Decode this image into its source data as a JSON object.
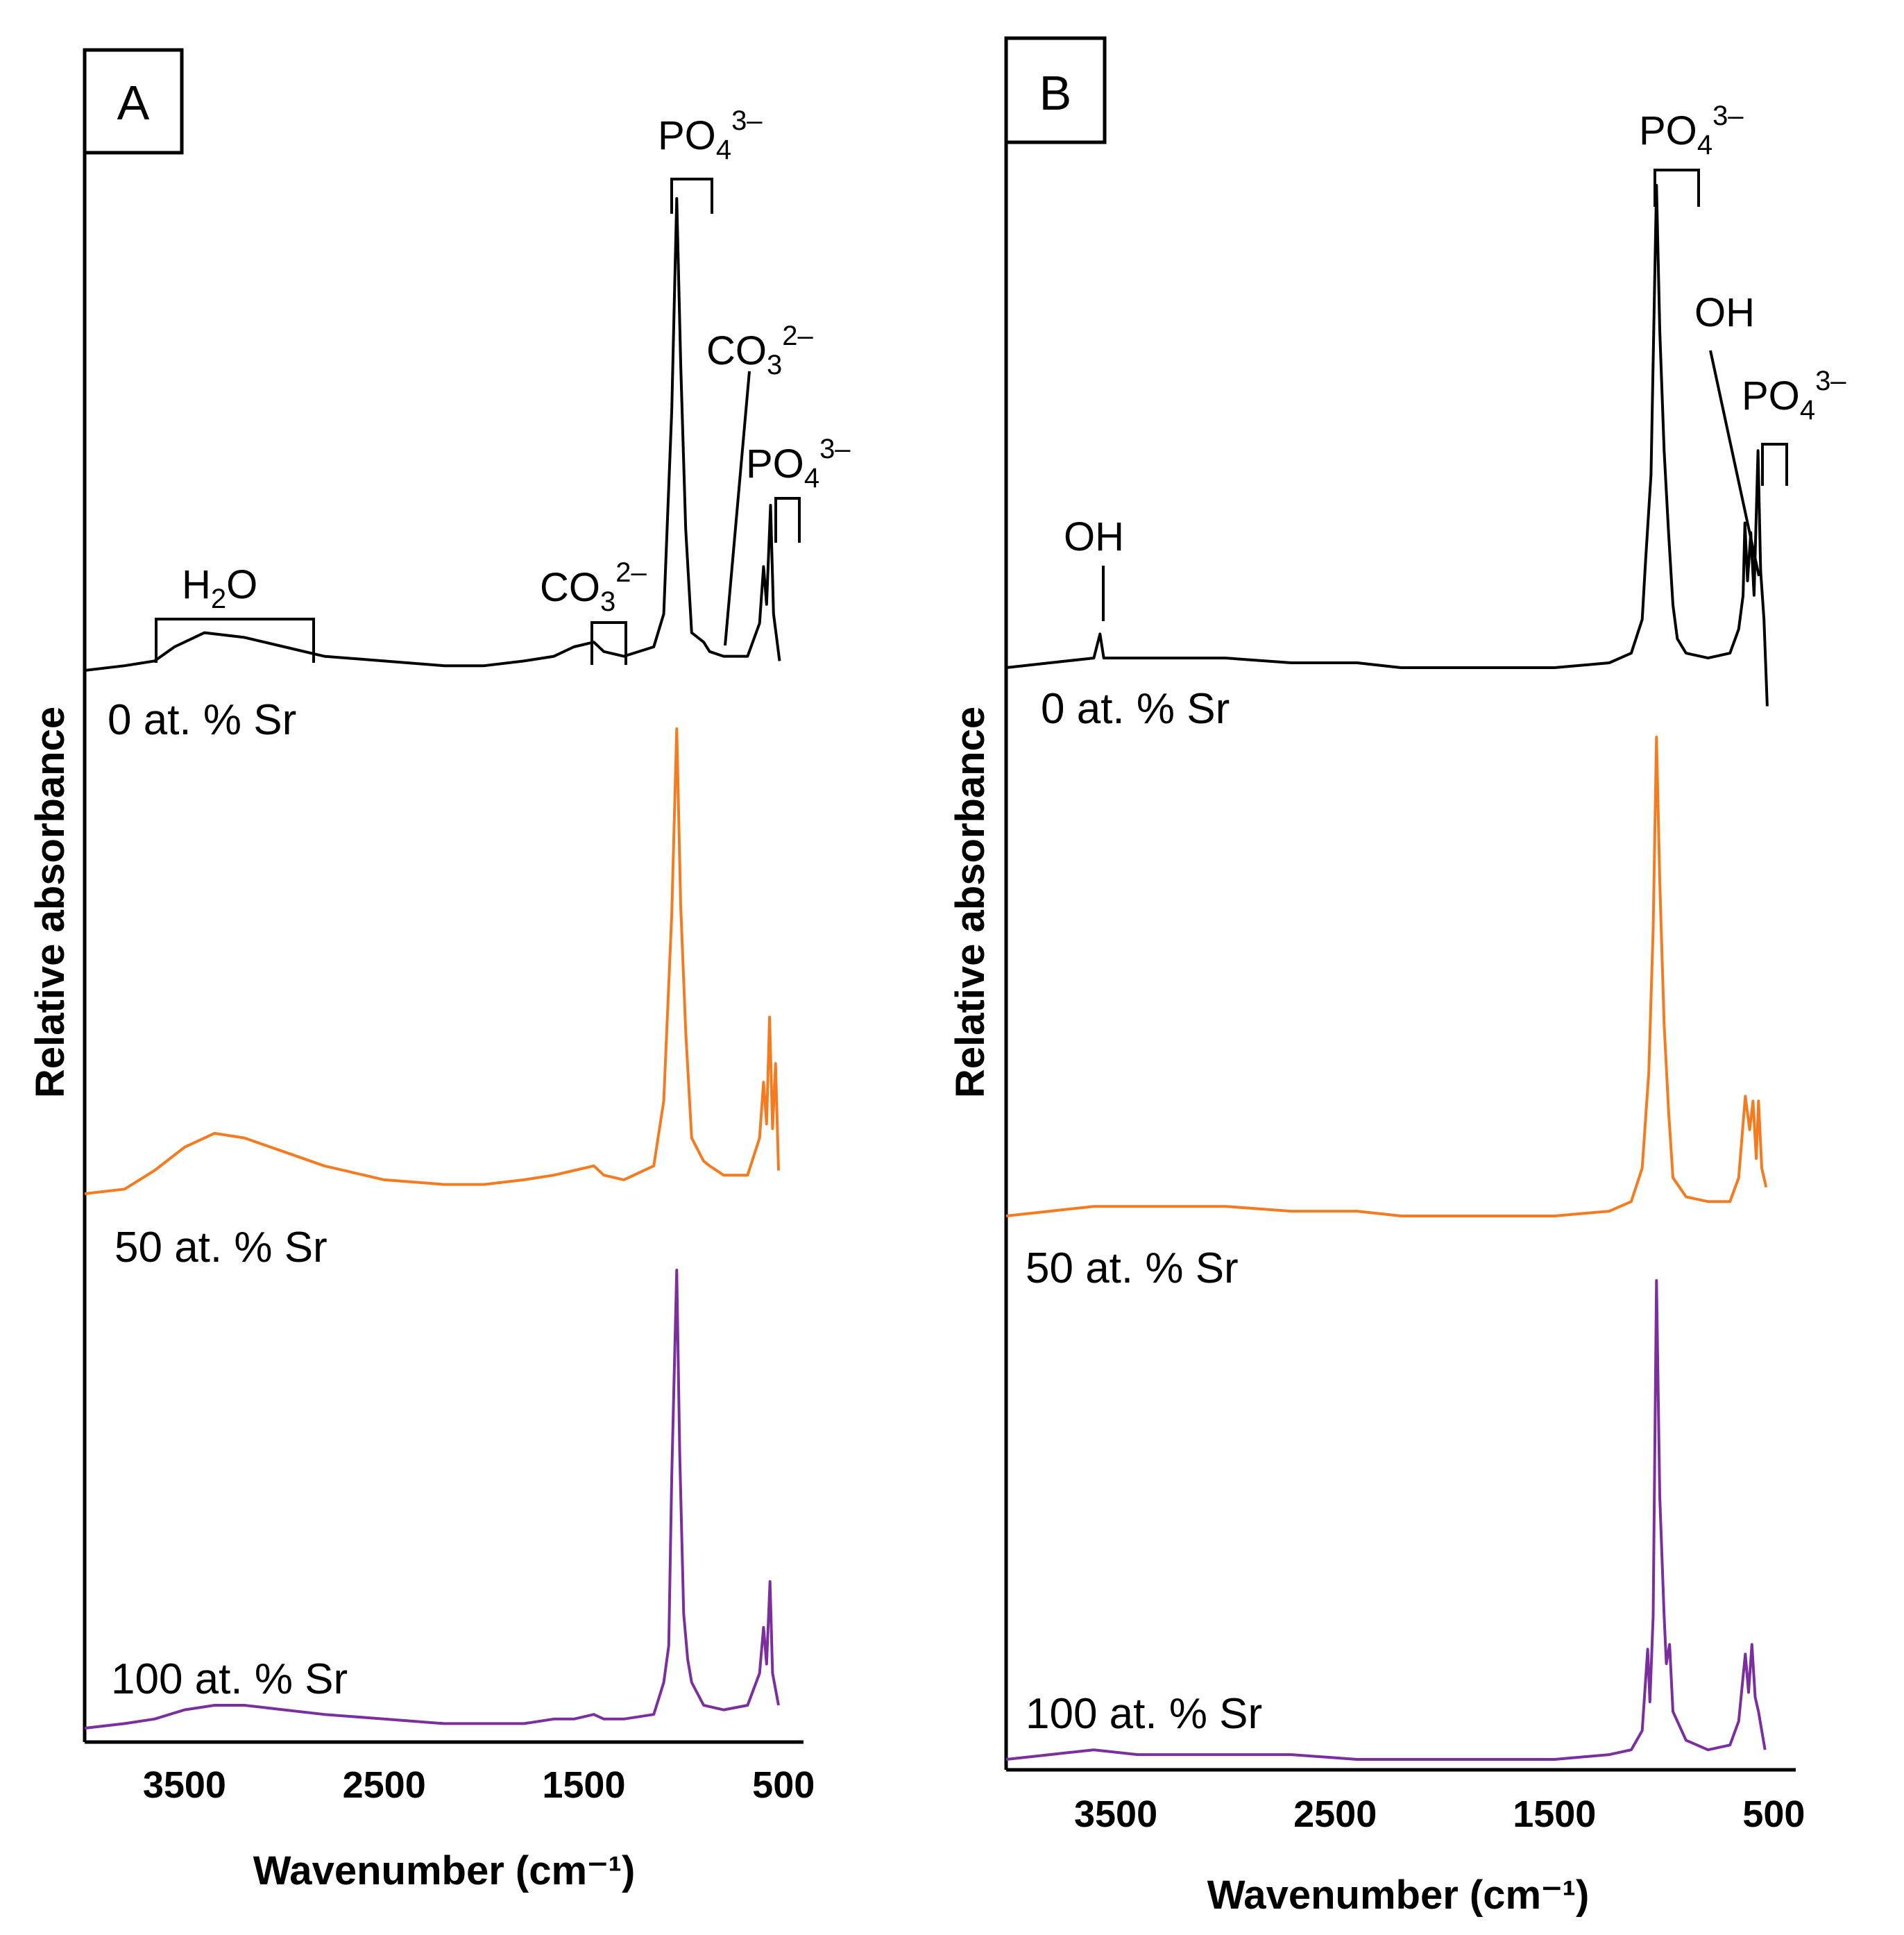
{
  "chart_data": [
    {
      "panel": "A",
      "type": "line",
      "xlabel": "Wavenumber (cm⁻¹)",
      "ylabel": "Relative absorbance",
      "xlim": [
        4000,
        400
      ],
      "xticks": [
        "3500",
        "2500",
        "1500",
        "500"
      ],
      "xtick_values": [
        3500,
        2500,
        1500,
        500
      ],
      "series": [
        {
          "name": "0 at. % Sr",
          "color": "#000000",
          "points": [
            [
              4000,
              0.0
            ],
            [
              3800,
              0.01
            ],
            [
              3650,
              0.02
            ],
            [
              3550,
              0.05
            ],
            [
              3400,
              0.08
            ],
            [
              3200,
              0.07
            ],
            [
              3000,
              0.05
            ],
            [
              2800,
              0.03
            ],
            [
              2500,
              0.02
            ],
            [
              2200,
              0.01
            ],
            [
              2000,
              0.01
            ],
            [
              1800,
              0.02
            ],
            [
              1650,
              0.03
            ],
            [
              1550,
              0.05
            ],
            [
              1450,
              0.06
            ],
            [
              1400,
              0.04
            ],
            [
              1300,
              0.03
            ],
            [
              1150,
              0.05
            ],
            [
              1100,
              0.12
            ],
            [
              1060,
              0.55
            ],
            [
              1035,
              1.0
            ],
            [
              1015,
              0.65
            ],
            [
              990,
              0.3
            ],
            [
              960,
              0.08
            ],
            [
              900,
              0.06
            ],
            [
              870,
              0.04
            ],
            [
              800,
              0.03
            ],
            [
              680,
              0.03
            ],
            [
              620,
              0.1
            ],
            [
              600,
              0.22
            ],
            [
              585,
              0.14
            ],
            [
              565,
              0.35
            ],
            [
              550,
              0.12
            ],
            [
              520,
              0.02
            ]
          ]
        },
        {
          "name": "50 at. % Sr",
          "color": "#F47B20",
          "points": [
            [
              4000,
              0.0
            ],
            [
              3800,
              0.01
            ],
            [
              3650,
              0.05
            ],
            [
              3500,
              0.1
            ],
            [
              3350,
              0.13
            ],
            [
              3200,
              0.12
            ],
            [
              3000,
              0.09
            ],
            [
              2800,
              0.06
            ],
            [
              2500,
              0.03
            ],
            [
              2200,
              0.02
            ],
            [
              2000,
              0.02
            ],
            [
              1800,
              0.03
            ],
            [
              1650,
              0.04
            ],
            [
              1550,
              0.05
            ],
            [
              1450,
              0.06
            ],
            [
              1400,
              0.04
            ],
            [
              1300,
              0.03
            ],
            [
              1150,
              0.06
            ],
            [
              1100,
              0.2
            ],
            [
              1060,
              0.6
            ],
            [
              1035,
              1.0
            ],
            [
              1015,
              0.62
            ],
            [
              990,
              0.35
            ],
            [
              960,
              0.12
            ],
            [
              900,
              0.07
            ],
            [
              870,
              0.06
            ],
            [
              800,
              0.04
            ],
            [
              680,
              0.04
            ],
            [
              620,
              0.12
            ],
            [
              600,
              0.24
            ],
            [
              585,
              0.15
            ],
            [
              570,
              0.38
            ],
            [
              555,
              0.14
            ],
            [
              540,
              0.28
            ],
            [
              525,
              0.05
            ]
          ]
        },
        {
          "name": "100 at. % Sr",
          "color": "#7B2F9E",
          "points": [
            [
              4000,
              0.0
            ],
            [
              3800,
              0.01
            ],
            [
              3650,
              0.02
            ],
            [
              3500,
              0.04
            ],
            [
              3350,
              0.05
            ],
            [
              3200,
              0.05
            ],
            [
              3000,
              0.04
            ],
            [
              2800,
              0.03
            ],
            [
              2500,
              0.02
            ],
            [
              2200,
              0.01
            ],
            [
              2000,
              0.01
            ],
            [
              1800,
              0.01
            ],
            [
              1650,
              0.02
            ],
            [
              1550,
              0.02
            ],
            [
              1450,
              0.03
            ],
            [
              1400,
              0.02
            ],
            [
              1300,
              0.02
            ],
            [
              1150,
              0.03
            ],
            [
              1100,
              0.1
            ],
            [
              1075,
              0.18
            ],
            [
              1060,
              0.55
            ],
            [
              1035,
              1.0
            ],
            [
              1020,
              0.6
            ],
            [
              1000,
              0.25
            ],
            [
              980,
              0.15
            ],
            [
              960,
              0.1
            ],
            [
              900,
              0.05
            ],
            [
              800,
              0.04
            ],
            [
              680,
              0.05
            ],
            [
              620,
              0.12
            ],
            [
              600,
              0.22
            ],
            [
              585,
              0.14
            ],
            [
              568,
              0.32
            ],
            [
              555,
              0.12
            ],
            [
              525,
              0.05
            ]
          ]
        }
      ],
      "annotations": [
        {
          "label": "H",
          "sub": "2",
          "rest": "O",
          "sup": ""
        },
        {
          "label": "CO",
          "sub": "3",
          "rest": "",
          "sup": "2–"
        },
        {
          "label": "PO",
          "sub": "4",
          "rest": "",
          "sup": "3–"
        },
        {
          "label": "CO",
          "sub": "3",
          "rest": "",
          "sup": "2–"
        },
        {
          "label": "PO",
          "sub": "4",
          "rest": "",
          "sup": "3–"
        }
      ]
    },
    {
      "panel": "B",
      "type": "line",
      "xlabel": "Wavenumber (cm⁻¹)",
      "ylabel": "Relative absorbance",
      "xlim": [
        4000,
        400
      ],
      "xticks": [
        "3500",
        "2500",
        "1500",
        "500"
      ],
      "xtick_values": [
        3500,
        2500,
        1500,
        500
      ],
      "series": [
        {
          "name": "0 at. % Sr",
          "color": "#000000",
          "points": [
            [
              4000,
              0.0
            ],
            [
              3800,
              0.01
            ],
            [
              3600,
              0.02
            ],
            [
              3572,
              0.07
            ],
            [
              3555,
              0.02
            ],
            [
              3300,
              0.02
            ],
            [
              3000,
              0.02
            ],
            [
              2700,
              0.01
            ],
            [
              2400,
              0.01
            ],
            [
              2200,
              0.0
            ],
            [
              2000,
              0.0
            ],
            [
              1800,
              0.0
            ],
            [
              1500,
              0.0
            ],
            [
              1250,
              0.01
            ],
            [
              1150,
              0.03
            ],
            [
              1100,
              0.1
            ],
            [
              1085,
              0.22
            ],
            [
              1060,
              0.4
            ],
            [
              1035,
              1.0
            ],
            [
              1020,
              0.7
            ],
            [
              1000,
              0.45
            ],
            [
              980,
              0.28
            ],
            [
              960,
              0.13
            ],
            [
              940,
              0.06
            ],
            [
              900,
              0.03
            ],
            [
              800,
              0.02
            ],
            [
              700,
              0.03
            ],
            [
              660,
              0.08
            ],
            [
              640,
              0.15
            ],
            [
              632,
              0.3
            ],
            [
              620,
              0.18
            ],
            [
              605,
              0.28
            ],
            [
              590,
              0.15
            ],
            [
              572,
              0.45
            ],
            [
              560,
              0.2
            ],
            [
              545,
              0.1
            ],
            [
              530,
              -0.08
            ]
          ]
        },
        {
          "name": "50 at. % Sr",
          "color": "#F47B20",
          "points": [
            [
              4000,
              0.0
            ],
            [
              3800,
              0.01
            ],
            [
              3600,
              0.02
            ],
            [
              3300,
              0.02
            ],
            [
              3000,
              0.02
            ],
            [
              2700,
              0.01
            ],
            [
              2400,
              0.01
            ],
            [
              2200,
              0.0
            ],
            [
              2000,
              0.0
            ],
            [
              1800,
              0.0
            ],
            [
              1500,
              0.0
            ],
            [
              1250,
              0.01
            ],
            [
              1150,
              0.03
            ],
            [
              1100,
              0.1
            ],
            [
              1070,
              0.3
            ],
            [
              1050,
              0.6
            ],
            [
              1035,
              1.0
            ],
            [
              1020,
              0.7
            ],
            [
              1000,
              0.4
            ],
            [
              980,
              0.22
            ],
            [
              960,
              0.08
            ],
            [
              900,
              0.04
            ],
            [
              800,
              0.03
            ],
            [
              700,
              0.03
            ],
            [
              660,
              0.08
            ],
            [
              630,
              0.25
            ],
            [
              610,
              0.18
            ],
            [
              595,
              0.24
            ],
            [
              580,
              0.12
            ],
            [
              570,
              0.24
            ],
            [
              555,
              0.1
            ],
            [
              535,
              0.06
            ]
          ]
        },
        {
          "name": "100 at. % Sr",
          "color": "#7B2F9E",
          "points": [
            [
              4000,
              0.0
            ],
            [
              3800,
              0.01
            ],
            [
              3600,
              0.02
            ],
            [
              3400,
              0.01
            ],
            [
              3000,
              0.01
            ],
            [
              2700,
              0.01
            ],
            [
              2400,
              0.0
            ],
            [
              2200,
              0.0
            ],
            [
              2000,
              0.0
            ],
            [
              1800,
              0.0
            ],
            [
              1500,
              0.0
            ],
            [
              1250,
              0.01
            ],
            [
              1150,
              0.02
            ],
            [
              1100,
              0.06
            ],
            [
              1075,
              0.23
            ],
            [
              1065,
              0.12
            ],
            [
              1050,
              0.3
            ],
            [
              1035,
              1.0
            ],
            [
              1020,
              0.55
            ],
            [
              1000,
              0.3
            ],
            [
              990,
              0.2
            ],
            [
              975,
              0.24
            ],
            [
              960,
              0.1
            ],
            [
              900,
              0.04
            ],
            [
              800,
              0.02
            ],
            [
              700,
              0.03
            ],
            [
              660,
              0.08
            ],
            [
              630,
              0.22
            ],
            [
              615,
              0.14
            ],
            [
              600,
              0.24
            ],
            [
              585,
              0.13
            ],
            [
              570,
              0.1
            ],
            [
              555,
              0.06
            ],
            [
              540,
              0.02
            ]
          ]
        }
      ],
      "annotations": [
        {
          "label": "OH",
          "sub": "",
          "rest": "",
          "sup": ""
        },
        {
          "label": "PO",
          "sub": "4",
          "rest": "",
          "sup": "3–"
        },
        {
          "label": "OH",
          "sub": "",
          "rest": "",
          "sup": ""
        },
        {
          "label": "PO",
          "sub": "4",
          "rest": "",
          "sup": "3–"
        }
      ]
    }
  ]
}
